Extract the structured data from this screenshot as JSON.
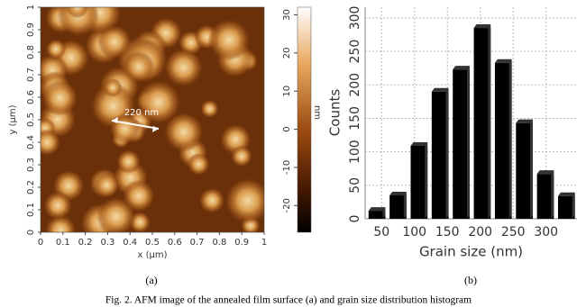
{
  "chart_data": [
    {
      "type": "image",
      "label": "(a)",
      "xlabel": "x (µm)",
      "ylabel": "y (µm)",
      "xlim": [
        0,
        1
      ],
      "ylim": [
        0,
        1
      ],
      "xticks": [
        0,
        0.1,
        0.2,
        0.3,
        0.4,
        0.5,
        0.6,
        0.7,
        0.8,
        0.9,
        1
      ],
      "yticks": [
        0,
        0.1,
        0.2,
        0.3,
        0.4,
        0.5,
        0.6,
        0.7,
        0.8,
        0.9,
        1
      ],
      "annotation": "220 nm",
      "colorbar": {
        "label": "nm",
        "lim": [
          -27,
          32
        ],
        "ticks": [
          -20,
          -10,
          0,
          10,
          20,
          30
        ]
      }
    },
    {
      "type": "histogram",
      "label": "(b)",
      "xlabel": "Grain size (nm)",
      "ylabel": "Counts",
      "bins": [
        27,
        59,
        91,
        123,
        155,
        187,
        219,
        251,
        283,
        315,
        347
      ],
      "values": [
        12,
        35,
        109,
        190,
        223,
        285,
        233,
        143,
        67,
        34
      ],
      "color": "#000000",
      "xlim": [
        25,
        347
      ],
      "ylim": [
        0,
        316
      ],
      "xticks": [
        50,
        100,
        150,
        200,
        250,
        300
      ],
      "yticks": [
        0,
        50,
        100,
        150,
        200,
        250,
        300
      ],
      "grid": true
    }
  ],
  "caption": "Fig. 2.   AFM image of the annealed film surface (a) and grain size distribution histogram"
}
